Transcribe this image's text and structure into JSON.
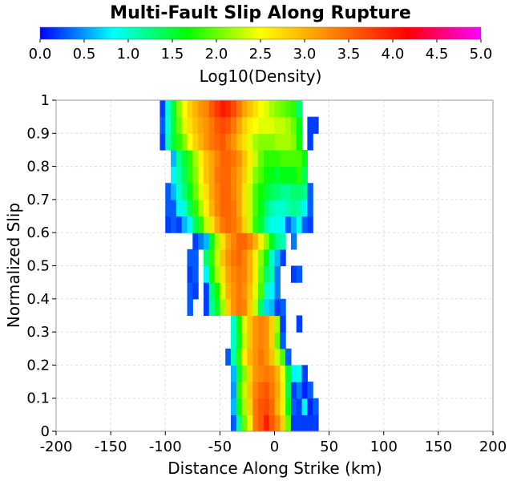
{
  "chart_data": {
    "type": "heatmap",
    "title": "Multi-Fault Slip Along Rupture",
    "xlabel": "Distance Along Strike (km)",
    "ylabel": "Normalized Slip",
    "xlim": [
      -200,
      200
    ],
    "ylim": [
      0,
      1
    ],
    "x_ticks": [
      "-200",
      "-150",
      "-100",
      "-50",
      "0",
      "50",
      "100",
      "150",
      "200"
    ],
    "y_ticks": [
      "0",
      "0.1",
      "0.2",
      "0.3",
      "0.4",
      "0.5",
      "0.6",
      "0.7",
      "0.8",
      "0.9",
      "1"
    ],
    "grid": true,
    "bin_width_km": 5,
    "bin_height": 0.05,
    "colorbar": {
      "label": "Log10(Density)",
      "min": 0.0,
      "max": 5.0,
      "ticks": [
        "0.0",
        "0.5",
        "1.0",
        "1.5",
        "2.0",
        "2.5",
        "3.0",
        "3.5",
        "4.0",
        "4.5",
        "5.0"
      ],
      "colors": [
        "#0000ff",
        "#00ffff",
        "#00ff00",
        "#ffff00",
        "#ff8000",
        "#ff0000",
        "#ff00ff"
      ]
    },
    "rows": [
      {
        "y": 0.0,
        "x_start": -40,
        "values": [
          0.3,
          1.2,
          2.0,
          2.6,
          3.4,
          3.6,
          4.0,
          3.6,
          3.3,
          2.8,
          2.0,
          0.2,
          0.2,
          0.2,
          0.2,
          0.2
        ]
      },
      {
        "y": 0.05,
        "x_start": -40,
        "values": [
          0.6,
          1.6,
          2.2,
          2.8,
          3.4,
          3.6,
          3.7,
          3.5,
          3.0,
          2.6,
          1.6,
          0.3,
          0.2,
          0.8,
          0.1,
          0.3
        ]
      },
      {
        "y": 0.1,
        "x_start": -40,
        "values": [
          0.5,
          1.8,
          2.3,
          2.9,
          3.3,
          3.5,
          3.6,
          3.4,
          3.1,
          2.6,
          1.4,
          0.2,
          0.4,
          0.1,
          0.3
        ]
      },
      {
        "y": 0.15,
        "x_start": -40,
        "values": [
          0.6,
          1.5,
          2.1,
          2.8,
          3.2,
          3.3,
          3.4,
          3.3,
          3.0,
          2.5,
          1.5,
          0.8,
          0.9,
          0.2
        ]
      },
      {
        "y": 0.2,
        "x_start": -45,
        "values": [
          0.3,
          1.1,
          1.8,
          2.6,
          3.0,
          3.2,
          3.4,
          3.2,
          2.9,
          2.3,
          1.9,
          0.3
        ]
      },
      {
        "y": 0.25,
        "x_start": -40,
        "values": [
          1.0,
          1.6,
          2.3,
          2.9,
          3.2,
          3.3,
          3.2,
          2.8,
          2.0,
          0.3
        ]
      },
      {
        "y": 0.3,
        "x_start": -40,
        "values": [
          1.0,
          1.7,
          2.4,
          2.9,
          3.2,
          3.3,
          3.2,
          2.8,
          2.2,
          0.2,
          null,
          null,
          0.2
        ]
      },
      {
        "y": 0.35,
        "x_start": -80,
        "values": [
          0.3,
          null,
          null,
          0.2,
          1.2,
          1.5,
          2.2,
          2.8,
          3.2,
          3.4,
          3.3,
          2.8,
          2.3,
          1.3,
          0.7,
          0.6,
          0.2,
          0.3
        ]
      },
      {
        "y": 0.4,
        "x_start": -80,
        "values": [
          0.3,
          0.2,
          null,
          0.2,
          1.3,
          1.7,
          2.4,
          3.0,
          3.2,
          3.4,
          3.2,
          2.9,
          2.4,
          1.9,
          1.0,
          0.8,
          0.4
        ]
      },
      {
        "y": 0.45,
        "x_start": -80,
        "values": [
          0.2,
          0.3,
          null,
          0.8,
          1.7,
          2.2,
          2.7,
          3.1,
          3.3,
          3.4,
          3.3,
          3.0,
          2.6,
          2.0,
          1.3,
          1.1,
          0.4,
          null,
          null,
          0.2,
          0.3
        ]
      },
      {
        "y": 0.5,
        "x_start": -80,
        "values": [
          0.3,
          0.3,
          null,
          1.3,
          1.8,
          2.3,
          2.9,
          3.2,
          3.4,
          3.5,
          3.3,
          3.0,
          2.6,
          2.1,
          1.6,
          1.0,
          0.6,
          0.2
        ]
      },
      {
        "y": 0.55,
        "x_start": -75,
        "values": [
          0.2,
          0.4,
          0.6,
          1.6,
          2.2,
          2.7,
          3.1,
          3.3,
          3.5,
          3.5,
          3.3,
          3.0,
          2.6,
          2.1,
          1.6,
          1.2,
          1.1,
          null,
          0.4
        ]
      },
      {
        "y": 0.6,
        "x_start": -100,
        "values": [
          0.2,
          0.3,
          0.2,
          0.6,
          0.8,
          1.4,
          1.8,
          2.3,
          2.7,
          3.1,
          3.4,
          3.5,
          3.4,
          3.2,
          2.8,
          2.3,
          1.8,
          1.5,
          1.1,
          0.9,
          0.9,
          0.8,
          0.3,
          0.6,
          0.9,
          0.3,
          0.2
        ]
      },
      {
        "y": 0.65,
        "x_start": -100,
        "values": [
          0.3,
          0.3,
          0.8,
          1.0,
          1.4,
          1.8,
          2.2,
          2.6,
          3.0,
          3.3,
          3.5,
          3.5,
          3.4,
          3.1,
          2.7,
          2.3,
          1.9,
          1.6,
          1.3,
          1.1,
          1.0,
          1.0,
          1.1,
          1.2,
          1.1,
          0.8,
          0.3
        ]
      },
      {
        "y": 0.7,
        "x_start": -100,
        "values": [
          0.3,
          0.6,
          1.0,
          1.3,
          1.6,
          2.0,
          2.4,
          2.7,
          3.1,
          3.3,
          3.5,
          3.5,
          3.3,
          3.1,
          2.7,
          2.3,
          1.9,
          1.7,
          1.5,
          1.4,
          1.3,
          1.2,
          1.2,
          1.3,
          1.3,
          1.2,
          0.3
        ]
      },
      {
        "y": 0.75,
        "x_start": -95,
        "values": [
          0.8,
          1.1,
          1.4,
          1.8,
          2.1,
          2.5,
          2.9,
          3.1,
          3.4,
          3.5,
          3.5,
          3.3,
          3.1,
          2.8,
          2.4,
          2.1,
          1.9,
          1.7,
          1.6,
          1.5,
          1.6,
          1.6,
          1.6,
          1.8,
          1.4
        ]
      },
      {
        "y": 0.8,
        "x_start": -95,
        "values": [
          0.6,
          1.2,
          1.5,
          1.8,
          2.2,
          2.6,
          2.9,
          3.1,
          3.3,
          3.5,
          3.5,
          3.4,
          3.2,
          2.9,
          2.6,
          2.3,
          2.0,
          1.8,
          1.8,
          1.8,
          1.9,
          1.9,
          1.9,
          1.9,
          1.6
        ]
      },
      {
        "y": 0.85,
        "x_start": -105,
        "values": [
          0.2,
          1.1,
          1.5,
          1.8,
          2.1,
          2.5,
          2.8,
          3.0,
          3.2,
          3.4,
          3.5,
          3.6,
          3.4,
          3.2,
          2.9,
          2.7,
          2.4,
          2.2,
          2.1,
          2.1,
          2.1,
          2.2,
          2.2,
          2.2,
          2.1,
          1.7,
          null,
          0.2
        ]
      },
      {
        "y": 0.9,
        "x_start": -105,
        "values": [
          0.3,
          1.0,
          1.5,
          2.0,
          2.4,
          2.7,
          2.9,
          3.1,
          3.2,
          3.4,
          3.6,
          3.7,
          3.6,
          3.4,
          3.1,
          2.8,
          2.6,
          2.5,
          2.4,
          2.4,
          2.4,
          2.3,
          2.3,
          2.2,
          2.0,
          1.6,
          null,
          0.2,
          0.2
        ]
      },
      {
        "y": 0.95,
        "x_start": -105,
        "values": [
          0.2,
          1.0,
          1.5,
          2.1,
          2.5,
          2.8,
          3.0,
          3.2,
          3.3,
          3.6,
          3.8,
          4.0,
          3.9,
          3.7,
          3.4,
          3.1,
          2.9,
          2.7,
          2.5,
          2.4,
          2.2,
          2.1,
          2.0,
          1.9,
          1.8,
          1.3
        ]
      }
    ]
  }
}
